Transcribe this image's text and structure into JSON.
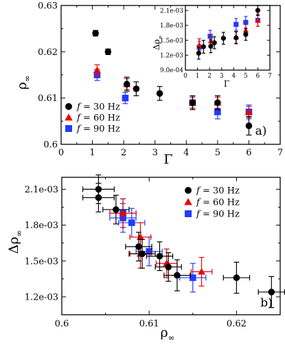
{
  "colors": {
    "black": "#000000",
    "red": "#ee0000",
    "blue": "#1f3cff"
  },
  "chart_data": [
    {
      "id": "a",
      "type": "scatter",
      "panel_label": "a)",
      "xlabel": "Γ",
      "ylabel": "ρ∞",
      "xlim": [
        0,
        7
      ],
      "ylim": [
        0.6,
        0.63
      ],
      "xticks": [
        {
          "v": 0,
          "label": "0"
        },
        {
          "v": 1,
          "label": "1"
        },
        {
          "v": 2,
          "label": "2"
        },
        {
          "v": 3,
          "label": "3"
        },
        {
          "v": 4,
          "label": "4"
        },
        {
          "v": 5,
          "label": "5"
        },
        {
          "v": 6,
          "label": "6"
        },
        {
          "v": 7,
          "label": "7"
        }
      ],
      "yticks": [
        {
          "v": 0.6,
          "label": "0.6"
        },
        {
          "v": 0.61,
          "label": "0.61"
        },
        {
          "v": 0.62,
          "label": "0.62"
        },
        {
          "v": 0.63,
          "label": "0.63"
        }
      ],
      "legend_position": "bottom-left",
      "series": [
        {
          "name": "f = 30 Hz",
          "marker": "circle",
          "color": "#000000",
          "points": [
            [
              1.1,
              0.624,
              0.0006
            ],
            [
              1.5,
              0.62,
              0.0006
            ],
            [
              2.1,
              0.613,
              0.0015
            ],
            [
              2.4,
              0.612,
              0.0015
            ],
            [
              3.15,
              0.611,
              0.0015
            ],
            [
              4.2,
              0.609,
              0.0015
            ],
            [
              5.0,
              0.609,
              0.0015
            ],
            [
              6.0,
              0.604,
              0.002
            ]
          ]
        },
        {
          "name": "f = 60 Hz",
          "marker": "triangle",
          "color": "#ee0000",
          "points": [
            [
              1.15,
              0.616,
              0.0012
            ],
            [
              2.1,
              0.613,
              0.0012
            ],
            [
              4.2,
              0.609,
              0.0012
            ],
            [
              5.0,
              0.609,
              0.0012
            ],
            [
              6.0,
              0.607,
              0.0012
            ]
          ]
        },
        {
          "name": "f = 90 Hz",
          "marker": "square",
          "color": "#1f3cff",
          "points": [
            [
              1.15,
              0.615,
              0.0012
            ],
            [
              2.05,
              0.61,
              0.0012
            ],
            [
              4.2,
              0.609,
              0.0012
            ],
            [
              5.0,
              0.607,
              0.0015
            ],
            [
              6.0,
              0.607,
              0.0015
            ]
          ]
        }
      ],
      "inset": {
        "type": "scatter",
        "xlabel": "Γ",
        "ylabel": "Δρ∞",
        "xlim": [
          0,
          7
        ],
        "ylim": [
          0.0009,
          0.0022
        ],
        "xticks": [
          {
            "v": 0,
            "label": "0"
          },
          {
            "v": 1,
            "label": "1"
          },
          {
            "v": 2,
            "label": "2"
          },
          {
            "v": 3,
            "label": "3"
          },
          {
            "v": 4,
            "label": "4"
          },
          {
            "v": 5,
            "label": "5"
          },
          {
            "v": 6,
            "label": "6"
          },
          {
            "v": 7,
            "label": "7"
          }
        ],
        "yticks": [
          {
            "v": 0.0009,
            "label": "9.0e-04"
          },
          {
            "v": 0.0012,
            "label": "1.2e-03"
          },
          {
            "v": 0.0015,
            "label": "1.5e-03"
          },
          {
            "v": 0.0018,
            "label": "1.8e-03"
          },
          {
            "v": 0.0021,
            "label": "2.1e-03"
          }
        ],
        "series": [
          {
            "name": "f = 30 Hz",
            "marker": "circle",
            "color": "#000000",
            "points": [
              [
                1.1,
                0.00124,
                0.00012
              ],
              [
                1.5,
                0.00137,
                0.00013
              ],
              [
                2.1,
                0.00138,
                0.00013
              ],
              [
                2.4,
                0.00145,
                0.00012
              ],
              [
                3.15,
                0.00154,
                0.00012
              ],
              [
                4.2,
                0.00155,
                0.00012
              ],
              [
                5.0,
                0.00162,
                0.00012
              ],
              [
                6.0,
                0.0021,
                0.0001
              ]
            ]
          },
          {
            "name": "f = 60 Hz",
            "marker": "triangle",
            "color": "#ee0000",
            "points": [
              [
                1.15,
                0.00141,
                0.00012
              ],
              [
                2.1,
                0.00148,
                0.00012
              ],
              [
                4.2,
                0.00156,
                0.00012
              ],
              [
                5.0,
                0.0017,
                0.00012
              ],
              [
                6.0,
                0.0019,
                0.00012
              ]
            ]
          },
          {
            "name": "f = 90 Hz",
            "marker": "square",
            "color": "#1f3cff",
            "points": [
              [
                1.15,
                0.00136,
                0.00012
              ],
              [
                2.05,
                0.00158,
                0.00012
              ],
              [
                4.2,
                0.00182,
                0.00012
              ],
              [
                5.0,
                0.00186,
                0.00012
              ],
              [
                6.0,
                0.0019,
                0.00012
              ]
            ]
          }
        ]
      }
    },
    {
      "id": "b",
      "type": "scatter",
      "panel_label": "b)",
      "xlabel": "ρ∞",
      "ylabel": "Δρ∞",
      "xlim": [
        0.6,
        0.625
      ],
      "ylim": [
        0.00105,
        0.0022
      ],
      "xticks": [
        {
          "v": 0.6,
          "label": "0.6"
        },
        {
          "v": 0.61,
          "label": "0.61"
        },
        {
          "v": 0.62,
          "label": "0.62"
        }
      ],
      "yticks": [
        {
          "v": 0.0012,
          "label": "1.2e-03"
        },
        {
          "v": 0.0015,
          "label": "1.5e-03"
        },
        {
          "v": 0.0018,
          "label": "1.8e-03"
        },
        {
          "v": 0.0021,
          "label": "2.1e-03"
        }
      ],
      "legend_position": "top-right",
      "series": [
        {
          "name": "f = 30 Hz",
          "marker": "circle",
          "color": "#000000",
          "points": [
            [
              0.6042,
              0.0021,
              0.0018,
              0.00012
            ],
            [
              0.6042,
              0.00203,
              0.0018,
              0.00012
            ],
            [
              0.6062,
              0.00193,
              0.0015,
              0.00012
            ],
            [
              0.6088,
              0.00162,
              0.0015,
              0.00012
            ],
            [
              0.6092,
              0.00156,
              0.0015,
              0.00012
            ],
            [
              0.6112,
              0.00154,
              0.0015,
              0.00012
            ],
            [
              0.6122,
              0.00145,
              0.0015,
              0.00012
            ],
            [
              0.6132,
              0.00138,
              0.0015,
              0.00013
            ],
            [
              0.62,
              0.00136,
              0.0015,
              0.00013
            ],
            [
              0.624,
              0.00124,
              0.0015,
              0.00013
            ]
          ]
        },
        {
          "name": "f = 60 Hz",
          "marker": "triangle",
          "color": "#ee0000",
          "points": [
            [
              0.607,
              0.0019,
              0.0015,
              0.00012
            ],
            [
              0.609,
              0.0017,
              0.0012,
              0.00012
            ],
            [
              0.609,
              0.00156,
              0.0012,
              0.00012
            ],
            [
              0.612,
              0.00148,
              0.0012,
              0.00012
            ],
            [
              0.616,
              0.00141,
              0.0012,
              0.00012
            ]
          ]
        },
        {
          "name": "f = 90 Hz",
          "marker": "square",
          "color": "#1f3cff",
          "points": [
            [
              0.607,
              0.0019,
              0.0015,
              0.00012
            ],
            [
              0.607,
              0.00186,
              0.0015,
              0.00012
            ],
            [
              0.608,
              0.00182,
              0.0015,
              0.00012
            ],
            [
              0.61,
              0.00158,
              0.0015,
              0.00012
            ],
            [
              0.615,
              0.00136,
              0.0015,
              0.00012
            ]
          ]
        }
      ]
    }
  ]
}
